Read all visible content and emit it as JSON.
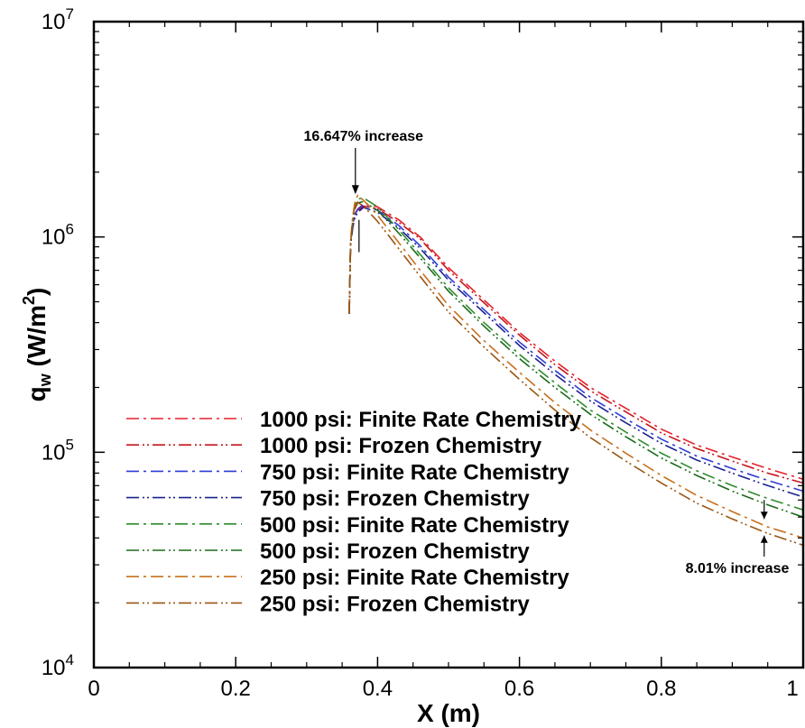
{
  "chart_data": {
    "type": "line",
    "xlabel": "X (m)",
    "ylabel_main": "q",
    "ylabel_sub": "w",
    "ylabel_unit_prefix": " (W/m",
    "ylabel_unit_sup": "2",
    "ylabel_unit_suffix": ")",
    "y_scale": "log",
    "xlim": [
      0,
      1
    ],
    "ylim": [
      10000,
      10000000
    ],
    "x_ticks": [
      {
        "value": 0,
        "label": "0"
      },
      {
        "value": 0.2,
        "label": "0.2"
      },
      {
        "value": 0.4,
        "label": "0.4"
      },
      {
        "value": 0.6,
        "label": "0.6"
      },
      {
        "value": 0.8,
        "label": "0.8"
      },
      {
        "value": 1,
        "label": "1"
      }
    ],
    "y_ticks": [
      {
        "value": 10000,
        "base": "10",
        "exp": "4"
      },
      {
        "value": 100000,
        "base": "10",
        "exp": "5"
      },
      {
        "value": 1000000,
        "base": "10",
        "exp": "6"
      },
      {
        "value": 10000000,
        "base": "10",
        "exp": "7"
      }
    ],
    "grid": false,
    "legend_position": "bottom-left",
    "series": [
      {
        "name": "1000 psi: Finite Rate Chemistry",
        "color": "#e8202a",
        "dash": "14,5,3,5",
        "x": [
          0.36,
          0.362,
          0.365,
          0.368,
          0.372,
          0.38,
          0.4,
          0.43,
          0.46,
          0.5,
          0.55,
          0.6,
          0.65,
          0.7,
          0.75,
          0.8,
          0.85,
          0.9,
          0.95,
          1.0
        ],
        "y": [
          450000,
          950000,
          1150000,
          1280000,
          1350000,
          1420000,
          1380000,
          1200000,
          1000000,
          720000,
          510000,
          360000,
          265000,
          200000,
          160000,
          128000,
          108000,
          95000,
          84000,
          75000
        ]
      },
      {
        "name": "1000 psi: Frozen Chemistry",
        "color": "#c4161c",
        "dash": "14,4,2,3,2,4",
        "x": [
          0.36,
          0.362,
          0.365,
          0.368,
          0.372,
          0.38,
          0.4,
          0.43,
          0.46,
          0.5,
          0.55,
          0.6,
          0.65,
          0.7,
          0.75,
          0.8,
          0.85,
          0.9,
          0.95,
          1.0
        ],
        "y": [
          440000,
          930000,
          1120000,
          1240000,
          1320000,
          1390000,
          1350000,
          1170000,
          980000,
          700000,
          495000,
          350000,
          255000,
          193000,
          154000,
          123000,
          104000,
          91000,
          80000,
          72000
        ]
      },
      {
        "name": "750 psi: Finite Rate Chemistry",
        "color": "#2e3bd6",
        "dash": "14,5,3,5",
        "x": [
          0.36,
          0.362,
          0.365,
          0.368,
          0.372,
          0.38,
          0.4,
          0.43,
          0.46,
          0.5,
          0.55,
          0.6,
          0.65,
          0.7,
          0.75,
          0.8,
          0.85,
          0.9,
          0.95,
          1.0
        ],
        "y": [
          450000,
          940000,
          1140000,
          1270000,
          1340000,
          1410000,
          1330000,
          1130000,
          910000,
          650000,
          460000,
          325000,
          240000,
          180000,
          143000,
          115000,
          96000,
          84000,
          74000,
          66000
        ]
      },
      {
        "name": "750 psi: Frozen Chemistry",
        "color": "#1a238f",
        "dash": "14,4,2,3,2,4",
        "x": [
          0.36,
          0.362,
          0.365,
          0.368,
          0.372,
          0.38,
          0.4,
          0.43,
          0.46,
          0.5,
          0.55,
          0.6,
          0.65,
          0.7,
          0.75,
          0.8,
          0.85,
          0.9,
          0.95,
          1.0
        ],
        "y": [
          440000,
          920000,
          1110000,
          1230000,
          1300000,
          1370000,
          1300000,
          1100000,
          885000,
          630000,
          445000,
          313000,
          230000,
          173000,
          137000,
          110000,
          92000,
          80000,
          70000,
          62000
        ]
      },
      {
        "name": "500 psi: Finite Rate Chemistry",
        "color": "#2e8b2e",
        "dash": "14,5,3,5",
        "x": [
          0.36,
          0.362,
          0.365,
          0.368,
          0.372,
          0.38,
          0.4,
          0.43,
          0.46,
          0.5,
          0.55,
          0.6,
          0.65,
          0.7,
          0.75,
          0.8,
          0.85,
          0.9,
          0.95,
          1.0
        ],
        "y": [
          450000,
          960000,
          1200000,
          1400000,
          1500000,
          1520000,
          1380000,
          1080000,
          830000,
          580000,
          400000,
          285000,
          210000,
          157000,
          124000,
          99000,
          82000,
          70000,
          61000,
          54000
        ]
      },
      {
        "name": "500 psi: Frozen Chemistry",
        "color": "#1b6b1b",
        "dash": "14,4,2,3,2,4",
        "x": [
          0.36,
          0.362,
          0.365,
          0.368,
          0.372,
          0.38,
          0.4,
          0.43,
          0.46,
          0.5,
          0.55,
          0.6,
          0.65,
          0.7,
          0.75,
          0.8,
          0.85,
          0.9,
          0.95,
          1.0
        ],
        "y": [
          440000,
          940000,
          1170000,
          1350000,
          1440000,
          1460000,
          1330000,
          1040000,
          800000,
          560000,
          385000,
          272000,
          200000,
          150000,
          118000,
          94000,
          78000,
          66000,
          57000,
          50000
        ]
      },
      {
        "name": "250 psi: Finite Rate Chemistry",
        "color": "#c8701e",
        "dash": "14,5,3,5",
        "x": [
          0.36,
          0.362,
          0.365,
          0.368,
          0.372,
          0.38,
          0.4,
          0.43,
          0.46,
          0.5,
          0.55,
          0.6,
          0.65,
          0.7,
          0.75,
          0.8,
          0.85,
          0.9,
          0.95,
          1.0
        ],
        "y": [
          450000,
          970000,
          1250000,
          1450000,
          1560000,
          1480000,
          1260000,
          940000,
          700000,
          480000,
          330000,
          235000,
          170000,
          127000,
          99000,
          78000,
          63000,
          53000,
          45000,
          40000
        ]
      },
      {
        "name": "250 psi: Frozen Chemistry",
        "color": "#9a5512",
        "dash": "14,4,2,3,2,4",
        "x": [
          0.36,
          0.362,
          0.365,
          0.368,
          0.372,
          0.38,
          0.4,
          0.43,
          0.46,
          0.5,
          0.55,
          0.6,
          0.65,
          0.7,
          0.75,
          0.8,
          0.85,
          0.9,
          0.95,
          1.0
        ],
        "y": [
          440000,
          950000,
          1200000,
          1360000,
          1450000,
          1390000,
          1180000,
          880000,
          655000,
          448000,
          308000,
          218000,
          157000,
          117000,
          91000,
          72000,
          58000,
          49000,
          42000,
          37000
        ]
      }
    ],
    "annotations": [
      {
        "text": "16.647% increase",
        "x": 0.37,
        "y_text": 2800000,
        "arrow_top_y": 1580000,
        "arrow_bottom_y": 850000,
        "arrow_mid_y": 1200000
      },
      {
        "text": "8.01% increase",
        "x": 0.945,
        "y_text": 26000,
        "arrow_top_y": 60000,
        "arrow_bottom_y": 34000,
        "arrow_upper_tip": 49000,
        "arrow_lower_tip": 41000
      }
    ]
  }
}
